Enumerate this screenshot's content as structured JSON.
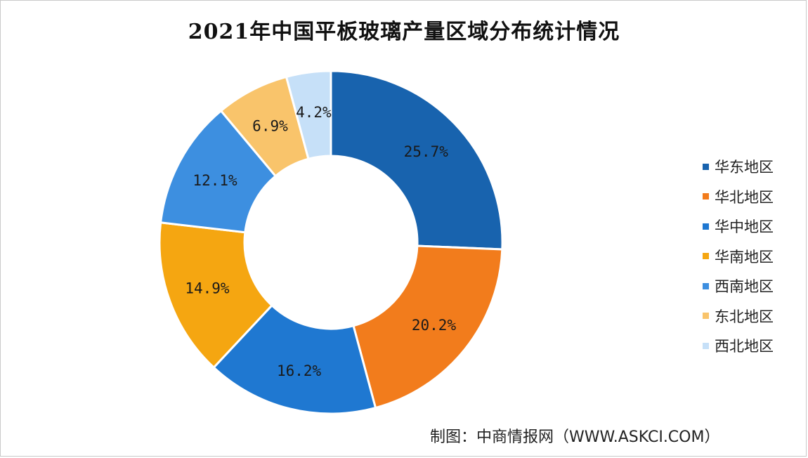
{
  "title": "2021年中国平板玻璃产量区域分布统计情况",
  "source": "制图：中商情报网（WWW.ASKCI.COM）",
  "chart_data": {
    "type": "pie",
    "subtype": "donut",
    "title": "2021年中国平板玻璃产量区域分布统计情况",
    "legend_position": "right",
    "unit": "%",
    "categories": [
      "华东地区",
      "华北地区",
      "华中地区",
      "华南地区",
      "西南地区",
      "东北地区",
      "西北地区"
    ],
    "values": [
      25.7,
      20.2,
      16.2,
      14.9,
      12.1,
      6.9,
      4.2
    ],
    "labels": [
      "25.7%",
      "20.2%",
      "16.2%",
      "14.9%",
      "12.1%",
      "6.9%",
      "4.2%"
    ],
    "colors": [
      "#1863ae",
      "#f27c1c",
      "#1f78d1",
      "#f5a611",
      "#3d8fe0",
      "#f9c46b",
      "#c6e0f8"
    ]
  }
}
